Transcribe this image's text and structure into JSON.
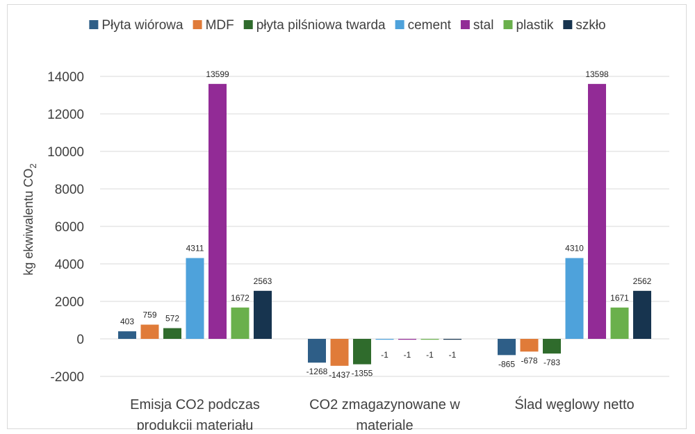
{
  "chart_data": {
    "type": "bar",
    "ylabel": "kg ekwiwalentu CO",
    "ylabel_subscript": "2",
    "ylim": [
      -2000,
      14000
    ],
    "yticks": [
      -2000,
      0,
      2000,
      4000,
      6000,
      8000,
      10000,
      12000,
      14000
    ],
    "grid": true,
    "legend_position": "top",
    "categories": [
      [
        "Emisja CO2 podczas",
        "produkcji materiału"
      ],
      [
        "CO2 zmagazynowane w",
        "materiale"
      ],
      [
        "Ślad węglowy netto"
      ]
    ],
    "series": [
      {
        "name": "Płyta wiórowa",
        "color": "#2e5e87",
        "values": [
          403,
          -1268,
          -865
        ]
      },
      {
        "name": "MDF",
        "color": "#e07b39",
        "values": [
          759,
          -1437,
          -678
        ]
      },
      {
        "name": "płyta pilśniowa twarda",
        "color": "#2f6b2c",
        "values": [
          572,
          -1355,
          -783
        ]
      },
      {
        "name": "cement",
        "color": "#4ea2db",
        "values": [
          4311,
          -1,
          4310
        ]
      },
      {
        "name": "stal",
        "color": "#922b96",
        "values": [
          13599,
          -1,
          13598
        ]
      },
      {
        "name": "plastik",
        "color": "#6ab04c",
        "values": [
          1672,
          -1,
          1671
        ]
      },
      {
        "name": "szkło",
        "color": "#17344f",
        "values": [
          2563,
          -1,
          2562
        ]
      }
    ]
  }
}
